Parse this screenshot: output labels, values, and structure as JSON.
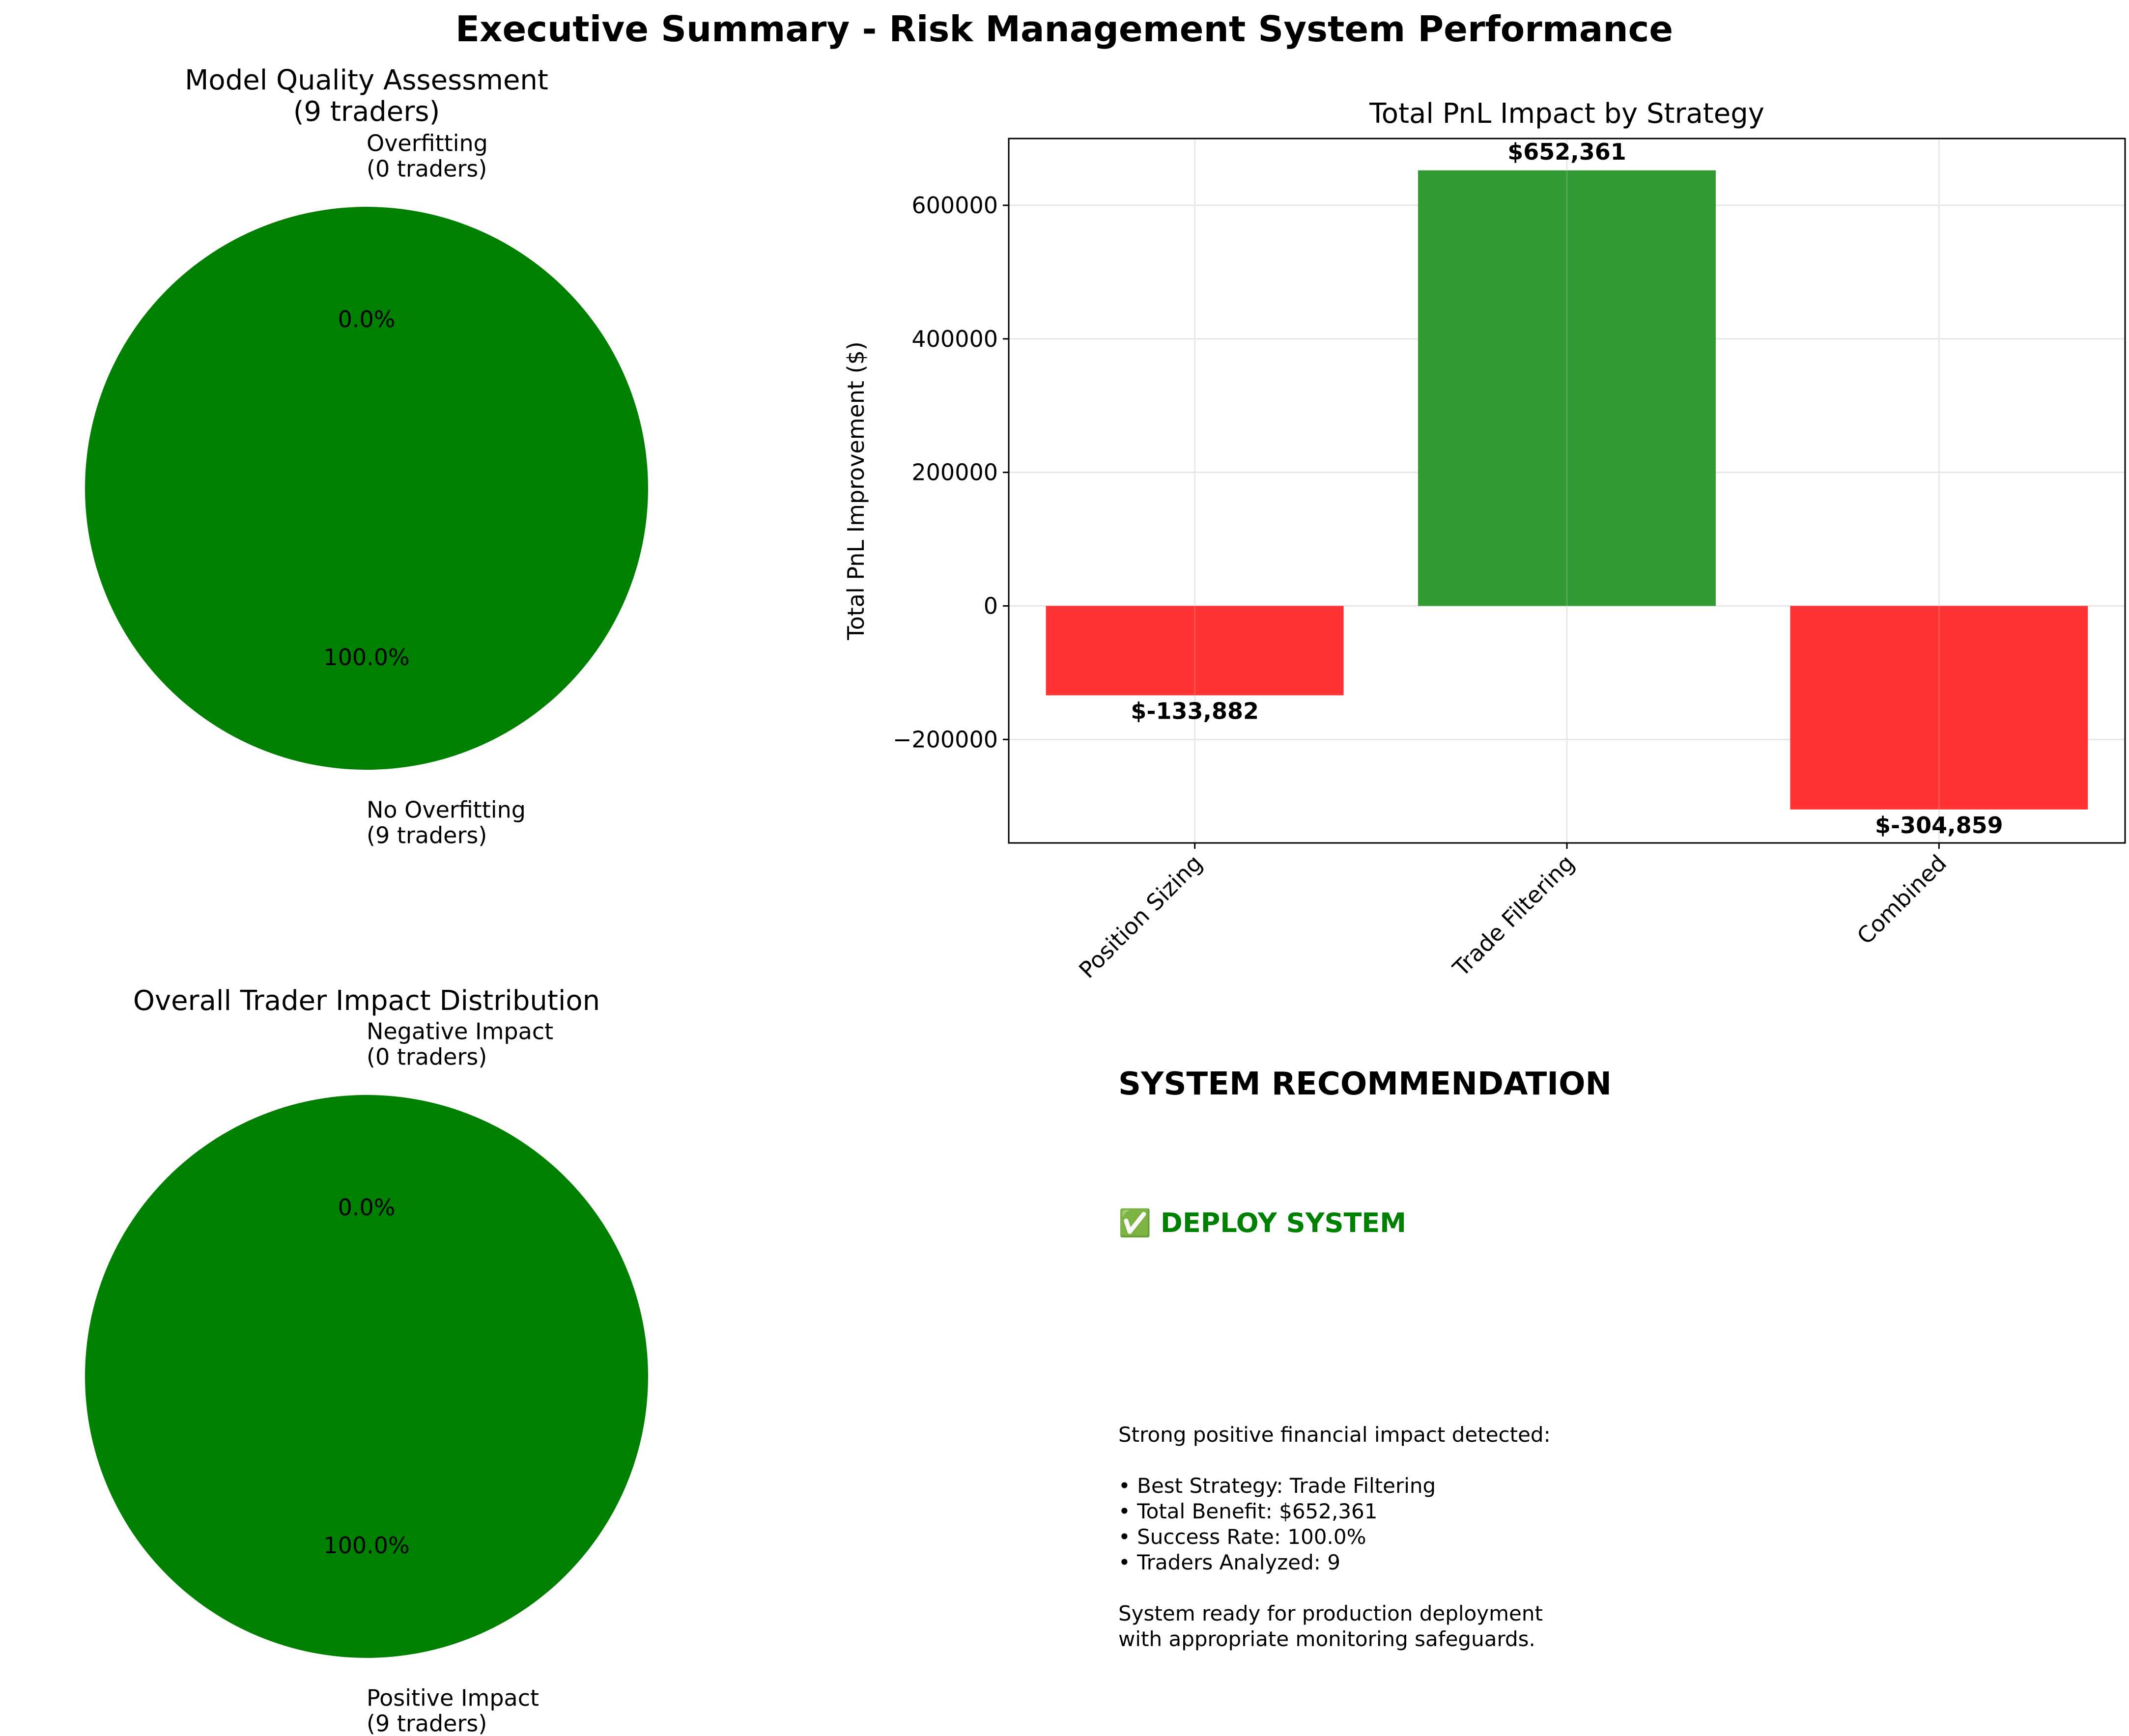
{
  "figure_title": "Executive Summary - Risk Management System Performance",
  "colors": {
    "green": "#008000",
    "bar_green": "#339933",
    "bar_red": "#ff3333",
    "grid": "#e6e6e6"
  },
  "chart_data": [
    {
      "type": "pie",
      "title": "Model Quality Assessment\n(9 traders)",
      "labels": [
        "Overfitting\n(0 traders)",
        "No Overfitting\n(9 traders)"
      ],
      "values": [
        0,
        9
      ],
      "pct_labels": [
        "0.0%",
        "100.0%"
      ],
      "colors": [
        "#ff3333",
        "#008000"
      ]
    },
    {
      "type": "bar",
      "title": "Total PnL Impact by Strategy",
      "categories": [
        "Position Sizing",
        "Trade Filtering",
        "Combined"
      ],
      "values": [
        -133882,
        652361,
        -304859
      ],
      "value_labels": [
        "$-133,882",
        "$652,361",
        "$-304,859"
      ],
      "ylabel": "Total PnL Improvement ($)",
      "xlabel": "",
      "ylim": [
        -355000,
        700000
      ],
      "yticks": [
        -200000,
        0,
        200000,
        400000,
        600000
      ],
      "ytick_labels": [
        "−200000",
        "0",
        "200000",
        "400000",
        "600000"
      ],
      "grid": true
    },
    {
      "type": "pie",
      "title": "Overall Trader Impact Distribution",
      "labels": [
        "Negative Impact\n(0 traders)",
        "Positive Impact\n(9 traders)"
      ],
      "values": [
        0,
        9
      ],
      "pct_labels": [
        "0.0%",
        "100.0%"
      ],
      "colors": [
        "#ff3333",
        "#008000"
      ]
    }
  ],
  "recommendation": {
    "title": "SYSTEM RECOMMENDATION",
    "status": "✅ DEPLOY SYSTEM",
    "lines": [
      "Strong positive financial impact detected:",
      "",
      "• Best Strategy: Trade Filtering",
      "• Total Benefit: $652,361",
      "• Success Rate: 100.0%",
      "• Traders Analyzed: 9",
      "",
      "System ready for production deployment",
      "with appropriate monitoring safeguards."
    ]
  }
}
